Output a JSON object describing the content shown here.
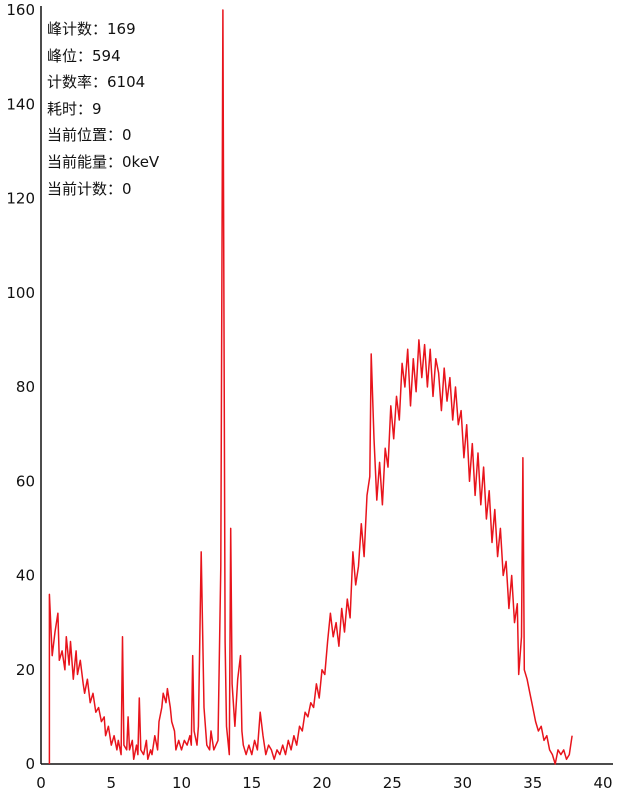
{
  "info": {
    "peak_count": "峰计数：169",
    "peak_position": "峰位：594",
    "count_rate": "计数率：6104",
    "elapsed": "耗时：9",
    "current_position": "当前位置：0",
    "current_energy": "当前能量：0keV",
    "current_count": "当前计数：0"
  },
  "colors": {
    "line": "#e8141c",
    "axis": "#111111"
  },
  "chart_data": {
    "type": "line",
    "title": "",
    "xlabel": "",
    "ylabel": "",
    "xlim": [
      0,
      40
    ],
    "ylim": [
      0,
      160
    ],
    "x_ticks": [
      0,
      5,
      10,
      15,
      20,
      25,
      30,
      35,
      40
    ],
    "y_ticks": [
      0,
      20,
      40,
      60,
      80,
      100,
      120,
      140,
      160
    ],
    "grid": false,
    "series": [
      {
        "name": "",
        "points": [
          [
            0.6,
            36
          ],
          [
            0.8,
            23
          ],
          [
            1.0,
            28
          ],
          [
            1.2,
            32
          ],
          [
            1.3,
            22
          ],
          [
            1.5,
            24
          ],
          [
            1.7,
            20
          ],
          [
            1.8,
            27
          ],
          [
            2.0,
            21
          ],
          [
            2.1,
            26
          ],
          [
            2.3,
            18
          ],
          [
            2.5,
            24
          ],
          [
            2.6,
            19
          ],
          [
            2.8,
            22
          ],
          [
            3.0,
            17
          ],
          [
            3.1,
            15
          ],
          [
            3.3,
            18
          ],
          [
            3.5,
            13
          ],
          [
            3.7,
            15
          ],
          [
            3.9,
            11
          ],
          [
            4.1,
            12
          ],
          [
            4.3,
            9
          ],
          [
            4.5,
            10
          ],
          [
            4.6,
            6
          ],
          [
            4.8,
            8
          ],
          [
            5.0,
            4
          ],
          [
            5.2,
            6
          ],
          [
            5.4,
            3
          ],
          [
            5.5,
            5
          ],
          [
            5.7,
            2
          ],
          [
            5.8,
            27
          ],
          [
            5.9,
            4
          ],
          [
            6.1,
            3
          ],
          [
            6.2,
            10
          ],
          [
            6.3,
            3
          ],
          [
            6.5,
            5
          ],
          [
            6.6,
            1
          ],
          [
            6.8,
            4
          ],
          [
            6.9,
            2
          ],
          [
            7.0,
            14
          ],
          [
            7.1,
            3
          ],
          [
            7.3,
            2
          ],
          [
            7.5,
            5
          ],
          [
            7.6,
            1
          ],
          [
            7.8,
            3
          ],
          [
            7.9,
            2
          ],
          [
            8.1,
            6
          ],
          [
            8.3,
            3
          ],
          [
            8.4,
            9
          ],
          [
            8.6,
            12
          ],
          [
            8.7,
            15
          ],
          [
            8.9,
            13
          ],
          [
            9.0,
            16
          ],
          [
            9.2,
            12
          ],
          [
            9.3,
            9
          ],
          [
            9.5,
            7
          ],
          [
            9.6,
            3
          ],
          [
            9.8,
            5
          ],
          [
            10.0,
            3
          ],
          [
            10.2,
            5
          ],
          [
            10.4,
            4
          ],
          [
            10.6,
            6
          ],
          [
            10.7,
            4
          ],
          [
            10.8,
            23
          ],
          [
            10.9,
            7
          ],
          [
            11.1,
            4
          ],
          [
            11.2,
            8
          ],
          [
            11.4,
            45
          ],
          [
            11.6,
            12
          ],
          [
            11.8,
            4
          ],
          [
            12.0,
            3
          ],
          [
            12.1,
            7
          ],
          [
            12.3,
            3
          ],
          [
            12.6,
            5
          ],
          [
            12.8,
            42
          ],
          [
            12.95,
            160
          ],
          [
            13.1,
            26
          ],
          [
            13.2,
            8
          ],
          [
            13.4,
            2
          ],
          [
            13.5,
            50
          ],
          [
            13.6,
            17
          ],
          [
            13.8,
            8
          ],
          [
            14.0,
            18
          ],
          [
            14.2,
            23
          ],
          [
            14.3,
            7
          ],
          [
            14.4,
            4
          ],
          [
            14.6,
            2
          ],
          [
            14.8,
            4
          ],
          [
            15.0,
            2
          ],
          [
            15.2,
            5
          ],
          [
            15.4,
            3
          ],
          [
            15.6,
            11
          ],
          [
            15.8,
            6
          ],
          [
            16.0,
            2
          ],
          [
            16.2,
            4
          ],
          [
            16.4,
            3
          ],
          [
            16.6,
            1
          ],
          [
            16.8,
            3
          ],
          [
            17.0,
            2
          ],
          [
            17.2,
            4
          ],
          [
            17.4,
            2
          ],
          [
            17.6,
            5
          ],
          [
            17.8,
            3
          ],
          [
            18.0,
            6
          ],
          [
            18.2,
            4
          ],
          [
            18.4,
            8
          ],
          [
            18.6,
            7
          ],
          [
            18.8,
            11
          ],
          [
            19.0,
            10
          ],
          [
            19.2,
            13
          ],
          [
            19.4,
            12
          ],
          [
            19.6,
            17
          ],
          [
            19.8,
            14
          ],
          [
            20.0,
            20
          ],
          [
            20.2,
            19
          ],
          [
            20.4,
            26
          ],
          [
            20.6,
            32
          ],
          [
            20.8,
            27
          ],
          [
            21.0,
            30
          ],
          [
            21.2,
            25
          ],
          [
            21.4,
            33
          ],
          [
            21.6,
            28
          ],
          [
            21.8,
            35
          ],
          [
            22.0,
            31
          ],
          [
            22.2,
            45
          ],
          [
            22.4,
            38
          ],
          [
            22.6,
            42
          ],
          [
            22.8,
            51
          ],
          [
            23.0,
            44
          ],
          [
            23.2,
            57
          ],
          [
            23.4,
            61
          ],
          [
            23.5,
            87
          ],
          [
            23.7,
            69
          ],
          [
            23.9,
            56
          ],
          [
            24.1,
            64
          ],
          [
            24.3,
            55
          ],
          [
            24.5,
            67
          ],
          [
            24.7,
            63
          ],
          [
            24.9,
            76
          ],
          [
            25.1,
            69
          ],
          [
            25.3,
            78
          ],
          [
            25.5,
            73
          ],
          [
            25.7,
            85
          ],
          [
            25.9,
            80
          ],
          [
            26.1,
            88
          ],
          [
            26.3,
            76
          ],
          [
            26.5,
            86
          ],
          [
            26.7,
            79
          ],
          [
            26.9,
            90
          ],
          [
            27.1,
            82
          ],
          [
            27.3,
            89
          ],
          [
            27.5,
            80
          ],
          [
            27.7,
            88
          ],
          [
            27.9,
            78
          ],
          [
            28.1,
            86
          ],
          [
            28.3,
            83
          ],
          [
            28.5,
            75
          ],
          [
            28.7,
            84
          ],
          [
            28.9,
            77
          ],
          [
            29.1,
            82
          ],
          [
            29.3,
            73
          ],
          [
            29.5,
            80
          ],
          [
            29.7,
            72
          ],
          [
            29.9,
            75
          ],
          [
            30.1,
            65
          ],
          [
            30.3,
            72
          ],
          [
            30.5,
            60
          ],
          [
            30.7,
            68
          ],
          [
            30.9,
            57
          ],
          [
            31.1,
            66
          ],
          [
            31.3,
            55
          ],
          [
            31.5,
            63
          ],
          [
            31.7,
            52
          ],
          [
            31.9,
            58
          ],
          [
            32.1,
            47
          ],
          [
            32.3,
            54
          ],
          [
            32.5,
            44
          ],
          [
            32.7,
            50
          ],
          [
            32.9,
            40
          ],
          [
            33.1,
            43
          ],
          [
            33.3,
            33
          ],
          [
            33.5,
            40
          ],
          [
            33.7,
            30
          ],
          [
            33.9,
            34
          ],
          [
            34.0,
            19
          ],
          [
            34.2,
            27
          ],
          [
            34.3,
            65
          ],
          [
            34.4,
            20
          ],
          [
            34.6,
            18
          ],
          [
            34.8,
            15
          ],
          [
            35.0,
            12
          ],
          [
            35.2,
            9
          ],
          [
            35.4,
            7
          ],
          [
            35.6,
            8
          ],
          [
            35.8,
            5
          ],
          [
            36.0,
            6
          ],
          [
            36.2,
            3
          ],
          [
            36.4,
            2
          ],
          [
            36.6,
            0
          ],
          [
            36.8,
            3
          ],
          [
            37.0,
            2
          ],
          [
            37.2,
            3
          ],
          [
            37.4,
            1
          ],
          [
            37.6,
            2
          ],
          [
            37.8,
            6
          ]
        ]
      }
    ]
  }
}
